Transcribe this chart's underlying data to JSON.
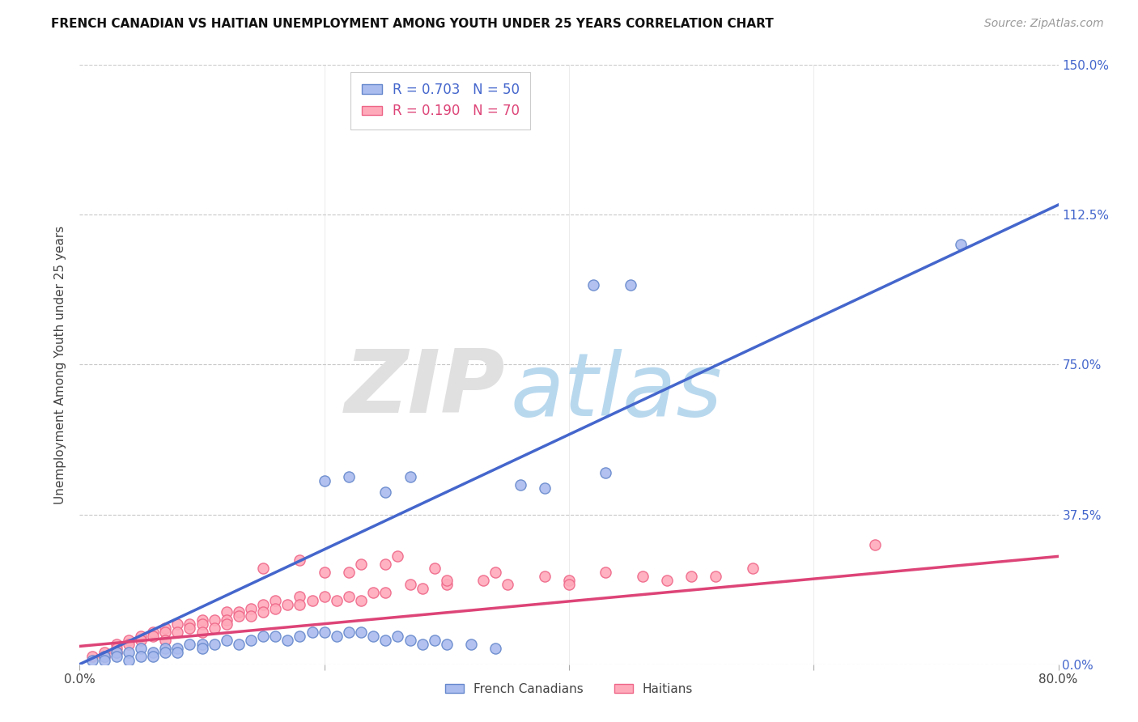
{
  "title": "FRENCH CANADIAN VS HAITIAN UNEMPLOYMENT AMONG YOUTH UNDER 25 YEARS CORRELATION CHART",
  "source": "Source: ZipAtlas.com",
  "ylabel": "Unemployment Among Youth under 25 years",
  "xlim": [
    0.0,
    0.8
  ],
  "ylim": [
    0.0,
    1.5
  ],
  "yticks": [
    0.0,
    0.375,
    0.75,
    1.125,
    1.5
  ],
  "xticks": [
    0.0,
    0.2,
    0.4,
    0.6,
    0.8
  ],
  "background_color": "#ffffff",
  "grid_color": "#c8c8c8",
  "blue_scatter_color": "#aabbee",
  "blue_edge_color": "#6688cc",
  "pink_scatter_color": "#ffaabb",
  "pink_edge_color": "#ee6688",
  "blue_line_color": "#4466cc",
  "pink_line_color": "#dd4477",
  "blue_tick_color": "#4466cc",
  "r_blue": 0.703,
  "n_blue": 50,
  "r_pink": 0.19,
  "n_pink": 70,
  "legend_label_blue": "French Canadians",
  "legend_label_pink": "Haitians",
  "blue_line_x0": 0.0,
  "blue_line_y0": 0.0,
  "blue_line_x1": 0.8,
  "blue_line_y1": 1.15,
  "pink_line_x0": 0.0,
  "pink_line_y0": 0.045,
  "pink_line_x1": 0.8,
  "pink_line_y1": 0.27,
  "blue_cluster_x": [
    0.01,
    0.02,
    0.02,
    0.03,
    0.03,
    0.04,
    0.04,
    0.05,
    0.05,
    0.06,
    0.06,
    0.07,
    0.07,
    0.08,
    0.08,
    0.09,
    0.1,
    0.1,
    0.11,
    0.12,
    0.13,
    0.14,
    0.15,
    0.16,
    0.17,
    0.18,
    0.19,
    0.2,
    0.21,
    0.22,
    0.23,
    0.24,
    0.25,
    0.26,
    0.27,
    0.28,
    0.29,
    0.3,
    0.32,
    0.34,
    0.22,
    0.27,
    0.42,
    0.45,
    0.43,
    0.72,
    0.36,
    0.38,
    0.2,
    0.25
  ],
  "blue_cluster_y": [
    0.01,
    0.02,
    0.01,
    0.03,
    0.02,
    0.03,
    0.01,
    0.04,
    0.02,
    0.03,
    0.02,
    0.04,
    0.03,
    0.04,
    0.03,
    0.05,
    0.05,
    0.04,
    0.05,
    0.06,
    0.05,
    0.06,
    0.07,
    0.07,
    0.06,
    0.07,
    0.08,
    0.08,
    0.07,
    0.08,
    0.08,
    0.07,
    0.06,
    0.07,
    0.06,
    0.05,
    0.06,
    0.05,
    0.05,
    0.04,
    0.47,
    0.47,
    0.95,
    0.95,
    0.48,
    1.05,
    0.45,
    0.44,
    0.46,
    0.43
  ],
  "pink_cluster_x": [
    0.01,
    0.02,
    0.02,
    0.03,
    0.03,
    0.03,
    0.04,
    0.04,
    0.05,
    0.05,
    0.06,
    0.06,
    0.07,
    0.07,
    0.07,
    0.08,
    0.08,
    0.09,
    0.09,
    0.1,
    0.1,
    0.1,
    0.11,
    0.11,
    0.12,
    0.12,
    0.12,
    0.13,
    0.13,
    0.14,
    0.14,
    0.15,
    0.15,
    0.16,
    0.16,
    0.17,
    0.18,
    0.18,
    0.19,
    0.2,
    0.21,
    0.22,
    0.23,
    0.24,
    0.25,
    0.27,
    0.28,
    0.3,
    0.33,
    0.35,
    0.38,
    0.4,
    0.43,
    0.46,
    0.5,
    0.55,
    0.22,
    0.25,
    0.3,
    0.34,
    0.15,
    0.18,
    0.2,
    0.23,
    0.26,
    0.29,
    0.4,
    0.65,
    0.48,
    0.52
  ],
  "pink_cluster_y": [
    0.02,
    0.03,
    0.02,
    0.05,
    0.04,
    0.03,
    0.06,
    0.05,
    0.07,
    0.06,
    0.08,
    0.07,
    0.09,
    0.08,
    0.06,
    0.1,
    0.08,
    0.1,
    0.09,
    0.11,
    0.1,
    0.08,
    0.11,
    0.09,
    0.13,
    0.11,
    0.1,
    0.13,
    0.12,
    0.14,
    0.12,
    0.15,
    0.13,
    0.16,
    0.14,
    0.15,
    0.17,
    0.15,
    0.16,
    0.17,
    0.16,
    0.17,
    0.16,
    0.18,
    0.18,
    0.2,
    0.19,
    0.2,
    0.21,
    0.2,
    0.22,
    0.21,
    0.23,
    0.22,
    0.22,
    0.24,
    0.23,
    0.25,
    0.21,
    0.23,
    0.24,
    0.26,
    0.23,
    0.25,
    0.27,
    0.24,
    0.2,
    0.3,
    0.21,
    0.22
  ]
}
